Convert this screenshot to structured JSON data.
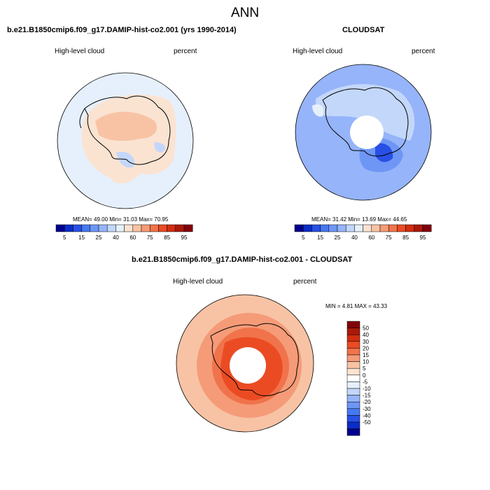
{
  "main_title": "ANN",
  "panels": {
    "model": {
      "title": "b.e21.B1850cmip6.f09_g17.DAMIP-hist-co2.001 (yrs 1990-2014)",
      "left_label": "High-level cloud",
      "right_label": "percent",
      "stats": "MEAN=  49.00  Min=  31.03  Max=  70.95"
    },
    "obs": {
      "title": "CLOUDSAT",
      "left_label": "High-level cloud",
      "right_label": "percent",
      "stats": "MEAN=  31.42  Min=  13.69  Max=  44.65"
    },
    "diff": {
      "title": "b.e21.B1850cmip6.f09_g17.DAMIP-hist-co2.001 - CLOUDSAT",
      "left_label": "High-level cloud",
      "right_label": "percent",
      "stats": "MIN =   4.81 MAX =  43.33"
    }
  },
  "colorbar_abs": {
    "colors": [
      "#00008c",
      "#0a2dc8",
      "#2850e6",
      "#4678f0",
      "#6e96f5",
      "#96b4fa",
      "#c3d7fa",
      "#e6f0fc",
      "#fbe3d2",
      "#f8c3a5",
      "#f59b78",
      "#f0734b",
      "#eb4b23",
      "#d22d0f",
      "#aa190a",
      "#82000a"
    ],
    "tick_labels": [
      "5",
      "15",
      "25",
      "40",
      "60",
      "75",
      "85",
      "95"
    ]
  },
  "colorbar_diff": {
    "colors": [
      "#82000a",
      "#aa190a",
      "#d22d0f",
      "#eb4b23",
      "#f0734b",
      "#f59b78",
      "#f8c3a5",
      "#fbe3d2",
      "#ffffff",
      "#e6f0fc",
      "#c3d7fa",
      "#96b4fa",
      "#6e96f5",
      "#4678f0",
      "#2850e6",
      "#0a2dc8",
      "#00008c"
    ],
    "tick_labels": [
      "50",
      "40",
      "30",
      "20",
      "15",
      "10",
      "5",
      "0",
      "-5",
      "-10",
      "-15",
      "-20",
      "-30",
      "-40",
      "-50"
    ]
  }
}
